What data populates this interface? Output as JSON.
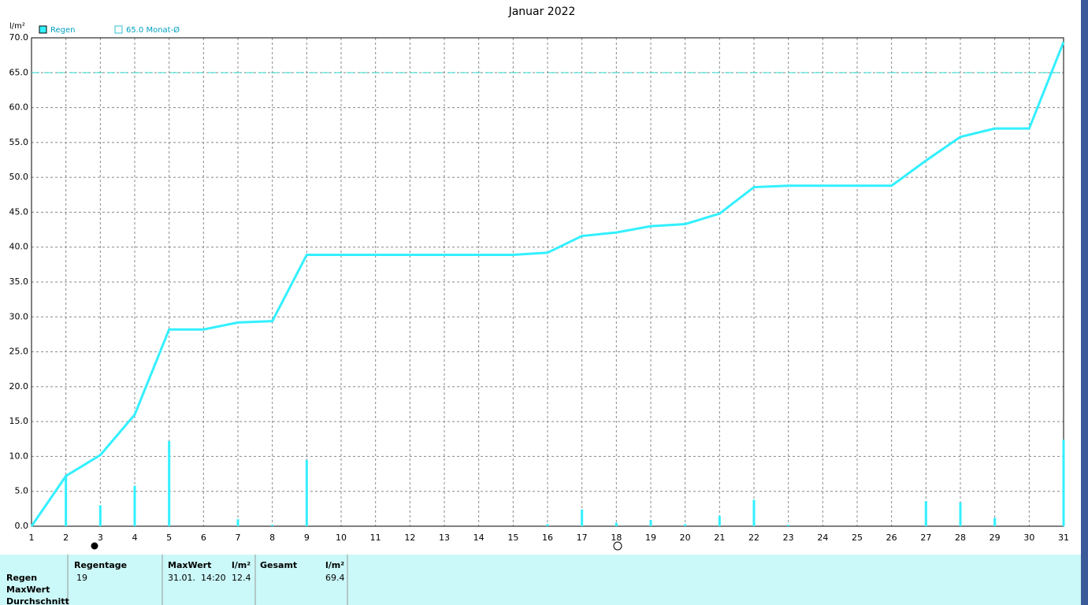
{
  "chart_data": {
    "type": "bar",
    "title": "Januar 2022",
    "y_unit": "l/m²",
    "x": [
      1,
      2,
      3,
      4,
      5,
      6,
      7,
      8,
      9,
      10,
      11,
      12,
      13,
      14,
      15,
      16,
      17,
      18,
      19,
      20,
      21,
      22,
      23,
      24,
      25,
      26,
      27,
      28,
      29,
      30,
      31
    ],
    "xlim": [
      1,
      31
    ],
    "xticks": [
      1,
      2,
      3,
      4,
      5,
      6,
      7,
      8,
      9,
      10,
      11,
      12,
      13,
      14,
      15,
      16,
      17,
      18,
      19,
      20,
      21,
      22,
      23,
      24,
      25,
      26,
      27,
      28,
      29,
      30,
      31
    ],
    "ylim": [
      0,
      70
    ],
    "yticks": [
      {
        "value": 0,
        "label": "0.0"
      },
      {
        "value": 5,
        "label": "5.0"
      },
      {
        "value": 10,
        "label": "10.0"
      },
      {
        "value": 15,
        "label": "15.0"
      },
      {
        "value": 20,
        "label": "20.0"
      },
      {
        "value": 25,
        "label": "25.0"
      },
      {
        "value": 30,
        "label": "30.0"
      },
      {
        "value": 35,
        "label": "35.0"
      },
      {
        "value": 40,
        "label": "40.0"
      },
      {
        "value": 45,
        "label": "45.0"
      },
      {
        "value": 50,
        "label": "50.0"
      },
      {
        "value": 55,
        "label": "55.0"
      },
      {
        "value": 60,
        "label": "60.0"
      },
      {
        "value": 65,
        "label": "65.0"
      },
      {
        "value": 70,
        "label": "70.0"
      }
    ],
    "grid": true,
    "series": [
      {
        "name": "Regen",
        "color": "#33f0ff",
        "values": [
          0,
          7.2,
          3.0,
          5.8,
          12.2,
          0,
          1.0,
          0.2,
          9.5,
          0,
          0,
          0,
          0,
          0,
          0,
          0.3,
          2.4,
          0.5,
          0.9,
          0.3,
          1.5,
          3.8,
          0.2,
          0,
          0,
          0,
          3.6,
          3.4,
          1.2,
          0,
          12.4
        ],
        "sum": [
          0,
          7.2,
          10.2,
          16.0,
          28.2,
          28.2,
          29.2,
          29.4,
          38.9,
          38.9,
          38.9,
          38.9,
          38.9,
          38.9,
          38.9,
          39.2,
          41.6,
          42.1,
          43.0,
          43.3,
          44.8,
          48.6,
          48.8,
          48.8,
          48.8,
          48.8,
          52.4,
          55.8,
          57.0,
          57.0,
          69.4
        ]
      }
    ],
    "reference_line": {
      "value": 65,
      "label": "65.0 Monat-Ø",
      "color": "#33e0d0"
    }
  },
  "stats": {
    "row_labels": [
      "Regen",
      "MaxWert",
      "Durchschnitt"
    ],
    "columns": [
      {
        "header": "Regentage",
        "value": "19"
      },
      {
        "header": "MaxWert",
        "unit": "l/m²",
        "time": "31.01.  14:20",
        "value": "12.4"
      },
      {
        "header": "Gesamt",
        "unit": "l/m²",
        "value": "69.4"
      }
    ]
  }
}
